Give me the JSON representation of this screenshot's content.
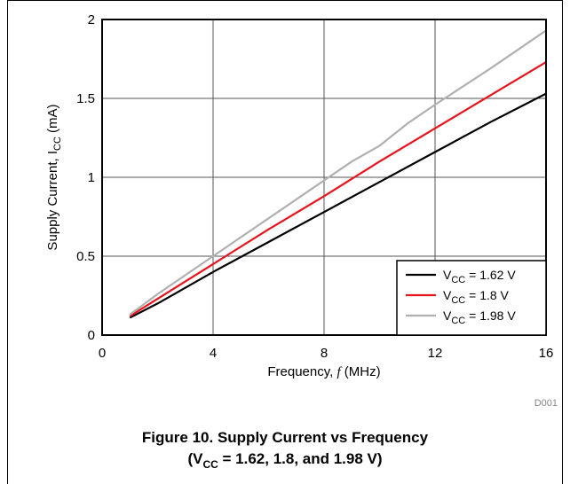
{
  "chart_data": {
    "type": "line",
    "title": "",
    "xlabel": "Frequency, f (MHz)",
    "ylabel_main": "Supply Current, I",
    "ylabel_sub": "CC",
    "ylabel_unit": " (mA)",
    "xlim": [
      0,
      16
    ],
    "ylim": [
      0,
      2
    ],
    "xticks": [
      "0",
      "4",
      "8",
      "12",
      "16"
    ],
    "yticks": [
      "0",
      "0.5",
      "1",
      "1.5",
      "2"
    ],
    "grid": true,
    "legend_position": "bottom-right",
    "footnote": "D001",
    "series": [
      {
        "name_prefix": "V",
        "name_sub": "CC",
        "name_suffix": " = 1.62 V",
        "color": "#000000",
        "x": [
          1,
          2,
          4,
          6,
          8,
          10,
          12,
          14,
          16
        ],
        "y": [
          0.11,
          0.2,
          0.4,
          0.59,
          0.78,
          0.97,
          1.16,
          1.35,
          1.53
        ]
      },
      {
        "name_prefix": "V",
        "name_sub": "CC",
        "name_suffix": " = 1.8 V",
        "color": "#e8141c",
        "x": [
          1,
          2,
          4,
          6,
          8,
          10,
          12,
          14,
          16
        ],
        "y": [
          0.12,
          0.23,
          0.45,
          0.67,
          0.88,
          1.1,
          1.31,
          1.52,
          1.73
        ]
      },
      {
        "name_prefix": "V",
        "name_sub": "CC",
        "name_suffix": " = 1.98 V",
        "color": "#b0b0b0",
        "x": [
          1,
          2,
          4,
          6,
          8,
          9,
          10,
          11,
          12,
          14,
          16
        ],
        "y": [
          0.13,
          0.26,
          0.5,
          0.74,
          0.98,
          1.1,
          1.2,
          1.34,
          1.46,
          1.69,
          1.93
        ]
      }
    ]
  },
  "caption": {
    "line1": "Figure 10. Supply Current vs Frequency",
    "line2_prefix": "(V",
    "line2_sub": "CC",
    "line2_suffix": " = 1.62, 1.8, and 1.98 V)"
  }
}
